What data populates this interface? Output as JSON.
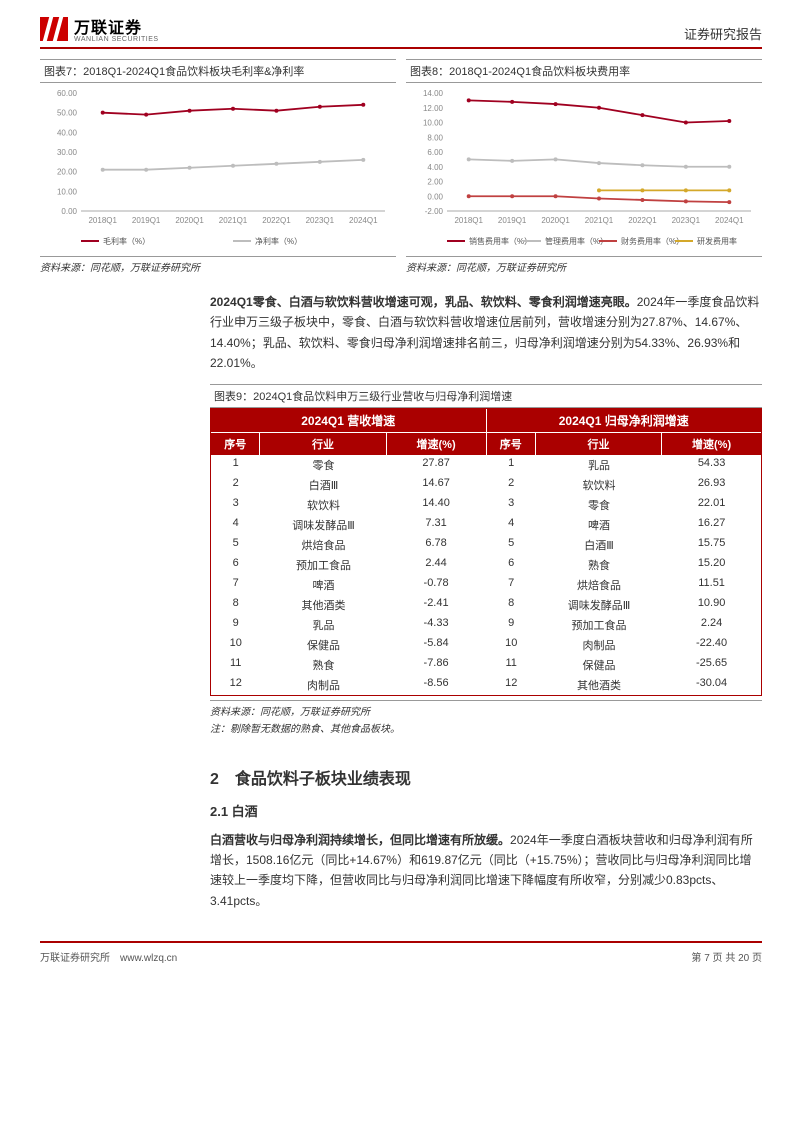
{
  "header": {
    "logo_cn": "万联证券",
    "logo_en": "WANLIAN SECURITIES",
    "doc_type": "证券研究报告"
  },
  "chart7": {
    "title": "图表7：2018Q1-2024Q1食品饮料板块毛利率&净利率",
    "type": "line",
    "categories": [
      "2018Q1",
      "2019Q1",
      "2020Q1",
      "2021Q1",
      "2022Q1",
      "2023Q1",
      "2024Q1"
    ],
    "series": [
      {
        "name": "毛利率（%）",
        "color": "#a00020",
        "values": [
          50,
          49,
          51,
          52,
          51,
          53,
          54
        ]
      },
      {
        "name": "净利率（%）",
        "color": "#bdbdbd",
        "values": [
          21,
          21,
          22,
          23,
          24,
          25,
          26
        ]
      }
    ],
    "ylim": [
      0,
      60
    ],
    "ytick_step": 10,
    "label_fontsize": 8,
    "background_color": "#ffffff",
    "grid_color": "#dddddd",
    "source": "资料来源：同花顺，万联证券研究所"
  },
  "chart8": {
    "title": "图表8：2018Q1-2024Q1食品饮料板块费用率",
    "type": "line",
    "categories": [
      "2018Q1",
      "2019Q1",
      "2020Q1",
      "2021Q1",
      "2022Q1",
      "2023Q1",
      "2024Q1"
    ],
    "series": [
      {
        "name": "销售费用率（%）",
        "color": "#a00020",
        "values": [
          13,
          12.8,
          12.5,
          12,
          11,
          10,
          10.2
        ]
      },
      {
        "name": "管理费用率（%）",
        "color": "#bdbdbd",
        "values": [
          5,
          4.8,
          5,
          4.5,
          4.2,
          4,
          4
        ]
      },
      {
        "name": "财务费用率（%）",
        "color": "#c04040",
        "values": [
          0,
          0,
          0,
          -0.3,
          -0.5,
          -0.7,
          -0.8
        ]
      },
      {
        "name": "研发费用率",
        "color": "#d4a82a",
        "values": [
          null,
          null,
          null,
          0.8,
          0.8,
          0.8,
          0.8
        ]
      }
    ],
    "ylim": [
      -2,
      14
    ],
    "ytick_step": 2,
    "label_fontsize": 8,
    "background_color": "#ffffff",
    "grid_color": "#dddddd",
    "source": "资料来源：同花顺，万联证券研究所"
  },
  "para1": {
    "bold": "2024Q1零食、白酒与软饮料营收增速可观，乳品、软饮料、零食利润增速亮眼。",
    "rest": "2024年一季度食品饮料行业申万三级子板块中，零食、白酒与软饮料营收增速位居前列，营收增速分别为27.87%、14.67%、14.40%；乳品、软饮料、零食归母净利润增速排名前三，归母净利润增速分别为54.33%、26.93%和22.01%。"
  },
  "table9": {
    "title": "图表9：2024Q1食品饮料申万三级行业营收与归母净利润增速",
    "left_header": "2024Q1 营收增速",
    "right_header": "2024Q1 归母净利润增速",
    "col_seq": "序号",
    "col_ind": "行业",
    "col_val": "增速(%)",
    "left_rows": [
      {
        "seq": "1",
        "ind": "零食",
        "val": "27.87"
      },
      {
        "seq": "2",
        "ind": "白酒Ⅲ",
        "val": "14.67"
      },
      {
        "seq": "3",
        "ind": "软饮料",
        "val": "14.40"
      },
      {
        "seq": "4",
        "ind": "调味发酵品Ⅲ",
        "val": "7.31"
      },
      {
        "seq": "5",
        "ind": "烘焙食品",
        "val": "6.78"
      },
      {
        "seq": "6",
        "ind": "预加工食品",
        "val": "2.44"
      },
      {
        "seq": "7",
        "ind": "啤酒",
        "val": "-0.78"
      },
      {
        "seq": "8",
        "ind": "其他酒类",
        "val": "-2.41"
      },
      {
        "seq": "9",
        "ind": "乳品",
        "val": "-4.33"
      },
      {
        "seq": "10",
        "ind": "保健品",
        "val": "-5.84"
      },
      {
        "seq": "11",
        "ind": "熟食",
        "val": "-7.86"
      },
      {
        "seq": "12",
        "ind": "肉制品",
        "val": "-8.56"
      }
    ],
    "right_rows": [
      {
        "seq": "1",
        "ind": "乳品",
        "val": "54.33"
      },
      {
        "seq": "2",
        "ind": "软饮料",
        "val": "26.93"
      },
      {
        "seq": "3",
        "ind": "零食",
        "val": "22.01"
      },
      {
        "seq": "4",
        "ind": "啤酒",
        "val": "16.27"
      },
      {
        "seq": "5",
        "ind": "白酒Ⅲ",
        "val": "15.75"
      },
      {
        "seq": "6",
        "ind": "熟食",
        "val": "15.20"
      },
      {
        "seq": "7",
        "ind": "烘焙食品",
        "val": "11.51"
      },
      {
        "seq": "8",
        "ind": "调味发酵品Ⅲ",
        "val": "10.90"
      },
      {
        "seq": "9",
        "ind": "预加工食品",
        "val": "2.24"
      },
      {
        "seq": "10",
        "ind": "肉制品",
        "val": "-22.40"
      },
      {
        "seq": "11",
        "ind": "保健品",
        "val": "-25.65"
      },
      {
        "seq": "12",
        "ind": "其他酒类",
        "val": "-30.04"
      }
    ],
    "source": "资料来源：同花顺，万联证券研究所",
    "note": "注：剔除暂无数据的熟食、其他食品板块。"
  },
  "section2": {
    "h1": "2　食品饮料子板块业绩表现",
    "h2": "2.1 白酒",
    "para_bold": "白酒营收与归母净利润持续增长，但同比增速有所放缓。",
    "para_rest": "2024年一季度白酒板块营收和归母净利润有所增长，1508.16亿元（同比+14.67%）和619.87亿元（同比（+15.75%）；营收同比与归母净利润同比增速较上一季度均下降，但营收同比与归母净利润同比增速下降幅度有所收窄，分别减少0.83pcts、3.41pcts。"
  },
  "footer": {
    "left": "万联证券研究所　www.wlzq.cn",
    "right": "第 7 页 共 20 页"
  }
}
